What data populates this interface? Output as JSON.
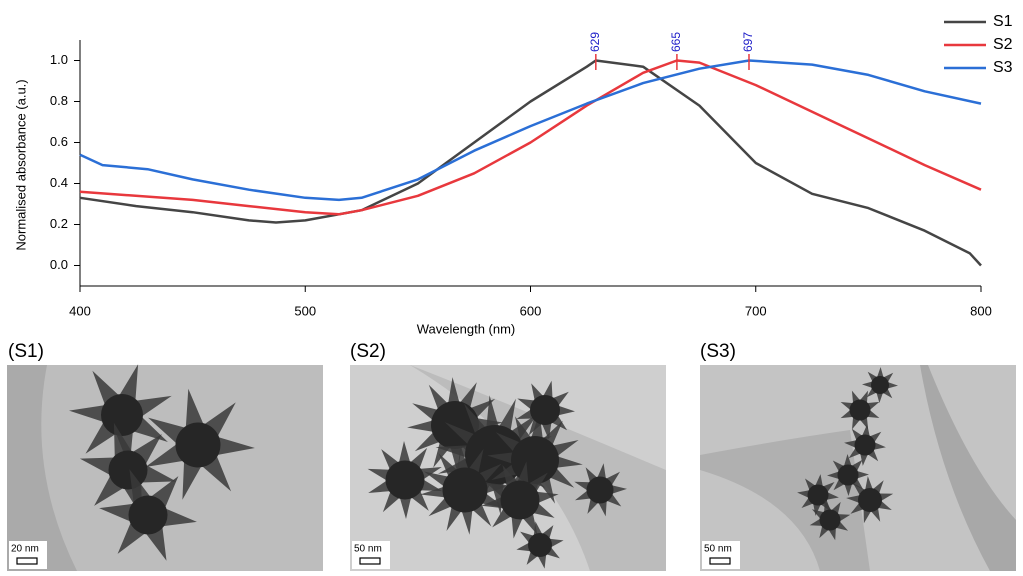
{
  "chart_data": {
    "type": "line",
    "xlabel": "Wavelength (nm)",
    "ylabel": "Normalised absorbance (a.u.)",
    "xlim": [
      400,
      800
    ],
    "xticks": [
      400,
      500,
      600,
      700,
      800
    ],
    "ylim": [
      -0.1,
      1.1
    ],
    "yticks": [
      {
        "value": 0,
        "label": "0.0"
      },
      {
        "value": 0.2,
        "label": "0.2"
      },
      {
        "value": 0.4,
        "label": "0.4"
      },
      {
        "value": 0.6,
        "label": "0.6"
      },
      {
        "value": 0.8,
        "label": "0.8"
      },
      {
        "value": 1,
        "label": "1.0"
      }
    ],
    "legend": "top-right",
    "peaks": [
      629,
      665,
      697
    ],
    "series": [
      {
        "name": "S1",
        "color": "#454545",
        "x": [
          400,
          425,
          450,
          475,
          487,
          500,
          525,
          550,
          575,
          600,
          625,
          629,
          650,
          675,
          700,
          725,
          750,
          775,
          795,
          800
        ],
        "values": [
          0.33,
          0.29,
          0.26,
          0.22,
          0.21,
          0.22,
          0.27,
          0.4,
          0.6,
          0.8,
          0.97,
          1.0,
          0.97,
          0.78,
          0.5,
          0.35,
          0.28,
          0.17,
          0.06,
          0.0
        ]
      },
      {
        "name": "S2",
        "color": "#e8383d",
        "x": [
          400,
          450,
          475,
          500,
          515,
          525,
          550,
          575,
          600,
          625,
          650,
          665,
          675,
          700,
          725,
          750,
          775,
          800
        ],
        "values": [
          0.36,
          0.32,
          0.29,
          0.26,
          0.25,
          0.27,
          0.34,
          0.45,
          0.6,
          0.78,
          0.94,
          1.0,
          0.99,
          0.88,
          0.75,
          0.62,
          0.49,
          0.37
        ]
      },
      {
        "name": "S3",
        "color": "#2b6fd6",
        "x": [
          400,
          410,
          430,
          450,
          475,
          500,
          515,
          525,
          550,
          575,
          600,
          625,
          650,
          675,
          697,
          725,
          750,
          775,
          800
        ],
        "values": [
          0.54,
          0.49,
          0.47,
          0.42,
          0.37,
          0.33,
          0.32,
          0.33,
          0.42,
          0.56,
          0.68,
          0.79,
          0.89,
          0.96,
          1.0,
          0.98,
          0.93,
          0.85,
          0.79
        ]
      }
    ]
  },
  "panels": [
    {
      "label": "(S1)",
      "scale": "20 nm"
    },
    {
      "label": "(S2)",
      "scale": "50 nm"
    },
    {
      "label": "(S3)",
      "scale": "50 nm"
    }
  ]
}
